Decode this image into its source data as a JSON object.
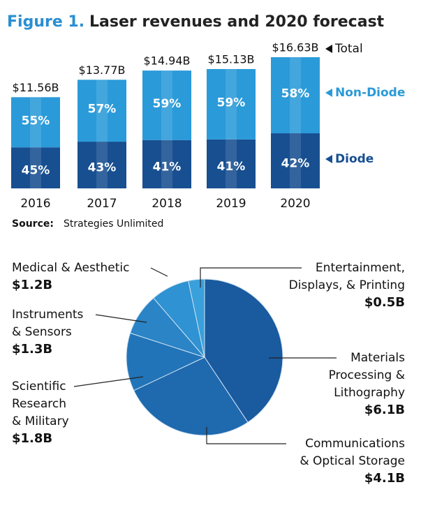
{
  "chart_data": [
    {
      "type": "bar",
      "stacked": true,
      "figure_label": "Figure 1.",
      "title": "Laser revenues and 2020 forecast",
      "categories": [
        "2016",
        "2017",
        "2018",
        "2019",
        "2020"
      ],
      "series": [
        {
          "name": "Diode",
          "color": "#174f90",
          "values": [
            45,
            43,
            41,
            41,
            42
          ],
          "value_labels": [
            "45%",
            "43%",
            "41%",
            "41%",
            "42%"
          ]
        },
        {
          "name": "Non-Diode",
          "color": "#2a9ad9",
          "values": [
            55,
            57,
            59,
            59,
            58
          ],
          "value_labels": [
            "55%",
            "57%",
            "59%",
            "59%",
            "58%"
          ]
        }
      ],
      "totals": {
        "name": "Total",
        "values": [
          11.56,
          13.77,
          14.94,
          15.13,
          16.63
        ],
        "value_labels": [
          "$11.56B",
          "$13.77B",
          "$14.94B",
          "$15.13B",
          "$16.63B"
        ]
      },
      "source_label": "Source:",
      "source": "Strategies Unlimited"
    },
    {
      "type": "pie",
      "categories": [
        [
          "Materials",
          "Processing &",
          "Lithography"
        ],
        [
          "Communications",
          "& Optical Storage"
        ],
        [
          "Scientific",
          "Research",
          "& Military"
        ],
        [
          "Instruments",
          "& Sensors"
        ],
        [
          "Medical & Aesthetic"
        ],
        [
          "Entertainment,",
          "Displays, & Printing"
        ]
      ],
      "values": [
        6.1,
        4.1,
        1.8,
        1.3,
        1.2,
        0.5
      ],
      "value_labels": [
        "$6.1B",
        "$4.1B",
        "$1.8B",
        "$1.3B",
        "$1.2B",
        "$0.5B"
      ],
      "colors": [
        "#1a5a9e",
        "#1f69ae",
        "#2274b9",
        "#2a84c6",
        "#2f92d2",
        "#3aa0dc"
      ]
    }
  ]
}
